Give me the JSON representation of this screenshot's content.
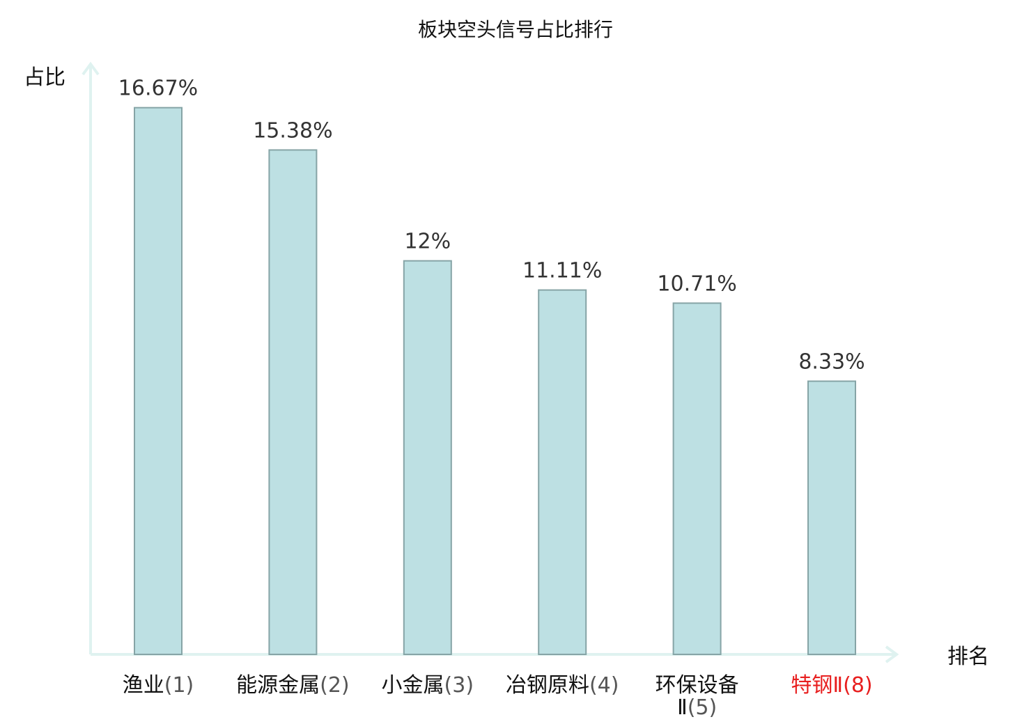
{
  "chart_data": {
    "type": "bar",
    "title": "板块空头信号占比排行",
    "ylabel": "占比",
    "xlabel": "排名",
    "ylim": [
      0,
      18
    ],
    "grid": false,
    "categories": [
      {
        "name": "渔业",
        "rank": "(1)",
        "highlight": false
      },
      {
        "name": "能源金属",
        "rank": "(2)",
        "highlight": false
      },
      {
        "name": "小金属",
        "rank": "(3)",
        "highlight": false
      },
      {
        "name": "冶钢原料",
        "rank": "(4)",
        "highlight": false
      },
      {
        "name": "环保设备",
        "name_line2": "Ⅱ",
        "rank": "(5)",
        "highlight": false
      },
      {
        "name": "特钢Ⅱ",
        "rank": "(8)",
        "highlight": true
      }
    ],
    "values": [
      16.67,
      15.38,
      12,
      11.11,
      10.71,
      8.33
    ],
    "value_labels": [
      "16.67%",
      "15.38%",
      "12%",
      "11.11%",
      "10.71%",
      "8.33%"
    ]
  },
  "colors": {
    "bar_fill": "#bde0e3",
    "bar_stroke": "#86a4a6",
    "axis": "#dff2f0",
    "label_text": "#333333",
    "category_text": "#111111",
    "rank_text": "#555555",
    "highlight": "#e81f1f"
  }
}
